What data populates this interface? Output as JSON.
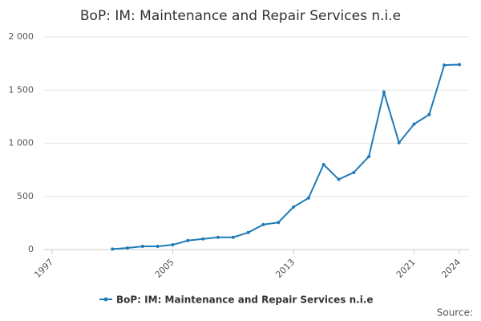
{
  "chart_data": {
    "type": "line",
    "title": "BoP: IM: Maintenance and Repair Services n.i.e",
    "source": "Source:",
    "x": [
      2001,
      2002,
      2003,
      2004,
      2005,
      2006,
      2007,
      2008,
      2009,
      2010,
      2011,
      2012,
      2013,
      2014,
      2015,
      2016,
      2017,
      2018,
      2019,
      2020,
      2021,
      2022,
      2023,
      2024
    ],
    "series": [
      {
        "name": "BoP: IM: Maintenance and Repair Services n.i.e",
        "color": "#1f7bb6",
        "values": [
          5,
          15,
          30,
          30,
          45,
          85,
          100,
          115,
          115,
          160,
          235,
          255,
          400,
          485,
          800,
          660,
          725,
          875,
          1480,
          1005,
          1180,
          1270,
          1735,
          1740
        ]
      }
    ],
    "xlim": [
      1997,
      2024
    ],
    "xticks": [
      1997,
      2005,
      2013,
      2021,
      2024
    ],
    "ylim": [
      0,
      2000
    ],
    "yticks": [
      0,
      500,
      {
        "value": 1000,
        "label": "1 000"
      },
      {
        "value": 1500,
        "label": "1 500"
      },
      {
        "value": 2000,
        "label": "2 000"
      }
    ],
    "grid": true
  }
}
